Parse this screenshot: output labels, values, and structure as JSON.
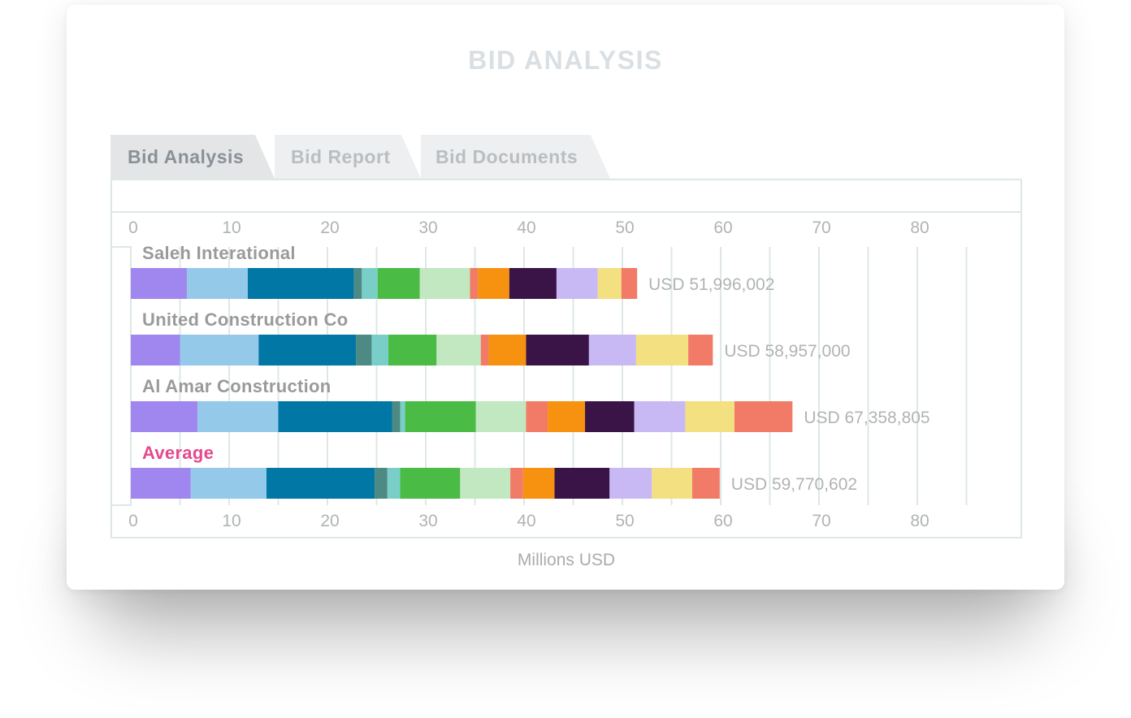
{
  "page": {
    "title": "BID ANALYSIS"
  },
  "tabs": [
    {
      "label": "Bid Analysis",
      "active": true
    },
    {
      "label": "Bid Report",
      "active": false
    },
    {
      "label": "Bid Documents",
      "active": false
    }
  ],
  "colors": {
    "segments": [
      "#a087f0",
      "#94c9ea",
      "#0077a4",
      "#4d8a84",
      "#79cfc8",
      "#4abb44",
      "#c1e8c0",
      "#f27b68",
      "#f6920f",
      "#3a1447",
      "#c8b9f5",
      "#f3e080",
      "#f27b68"
    ],
    "average_label": "#e5498e",
    "company_label": "#9a9a9a",
    "grid": "#dde8e5",
    "tick": "#b0b3b5"
  },
  "chart_data": {
    "type": "bar",
    "orientation": "horizontal",
    "stacked": true,
    "xlabel": "Millions USD",
    "xlim": [
      0,
      85
    ],
    "x_ticks": [
      0,
      10,
      20,
      30,
      40,
      50,
      60,
      70,
      80
    ],
    "grid": true,
    "categories": [
      "Saleh Interational",
      "United Construction Co",
      "Al Amar Construction",
      "Average"
    ],
    "totals_labels": [
      "USD 51,996,002",
      "USD 58,957,000",
      "USD 67,358,805",
      "USD 59,770,602"
    ],
    "segments": [
      [
        5.7,
        6.2,
        10.8,
        0.8,
        1.6,
        4.3,
        5.1,
        0.8,
        3.2,
        4.8,
        4.2,
        2.4,
        1.6
      ],
      [
        5.0,
        8.0,
        9.9,
        1.6,
        1.7,
        4.9,
        4.5,
        0.8,
        3.8,
        6.4,
        4.8,
        5.3,
        2.5
      ],
      [
        6.8,
        8.2,
        11.6,
        0.8,
        0.5,
        7.2,
        5.1,
        2.2,
        3.8,
        5.0,
        5.2,
        5.0,
        5.9
      ],
      [
        6.1,
        7.7,
        11.0,
        1.3,
        1.3,
        6.1,
        5.1,
        1.3,
        3.2,
        5.6,
        4.3,
        4.1,
        2.8
      ]
    ]
  }
}
